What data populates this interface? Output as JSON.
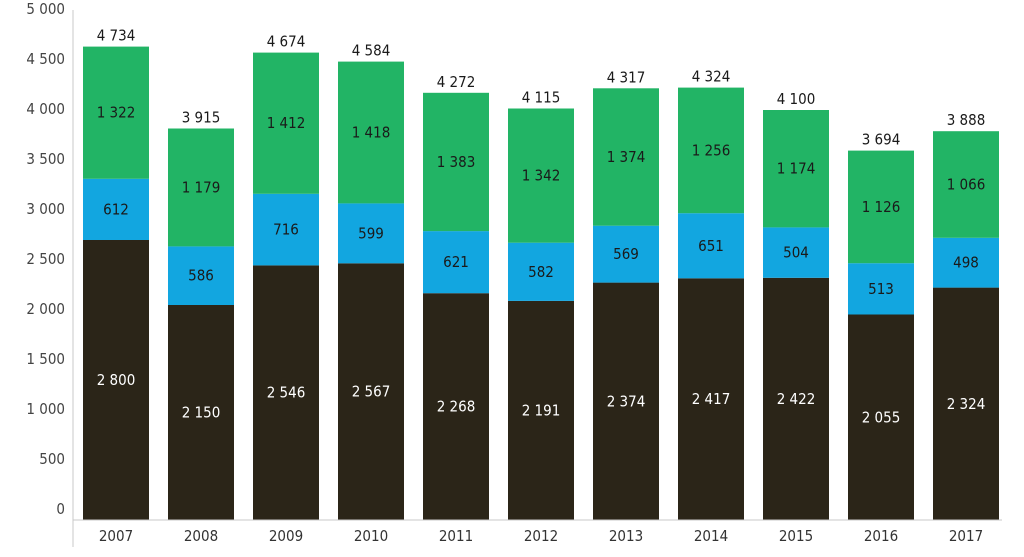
{
  "chart_data": {
    "type": "bar",
    "stacked": true,
    "title": "",
    "xlabel": "",
    "ylabel": "",
    "ylim": [
      0,
      5000
    ],
    "yticks": [
      0,
      500,
      1000,
      1500,
      2000,
      2500,
      3000,
      3500,
      4000,
      4500,
      5000
    ],
    "ytick_labels": [
      "0",
      "500",
      "1 000",
      "1 500",
      "2 000",
      "2 500",
      "3 000",
      "3 500",
      "4 000",
      "4 500",
      "5 000"
    ],
    "grid": false,
    "categories": [
      "2007",
      "2008",
      "2009",
      "2010",
      "2011",
      "2012",
      "2013",
      "2014",
      "2015",
      "2016",
      "2017"
    ],
    "series": [
      {
        "color": "#2b2518",
        "label_color": "#ffffff",
        "values": [
          2800,
          2150,
          2546,
          2567,
          2268,
          2191,
          2374,
          2417,
          2422,
          2055,
          2324
        ],
        "labels": [
          "2 800",
          "2 150",
          "2 546",
          "2 567",
          "2 268",
          "2 191",
          "2 374",
          "2 417",
          "2 422",
          "2 055",
          "2 324"
        ]
      },
      {
        "color": "#12a6e0",
        "label_color": "#1a1a1a",
        "values": [
          612,
          586,
          716,
          599,
          621,
          582,
          569,
          651,
          504,
          513,
          498
        ],
        "labels": [
          "612",
          "586",
          "716",
          "599",
          "621",
          "582",
          "569",
          "651",
          "504",
          "513",
          "498"
        ]
      },
      {
        "color": "#22b465",
        "label_color": "#1a1a1a",
        "values": [
          1322,
          1179,
          1412,
          1418,
          1383,
          1342,
          1374,
          1256,
          1174,
          1126,
          1066
        ],
        "labels": [
          "1 322",
          "1 179",
          "1 412",
          "1 418",
          "1 383",
          "1 342",
          "1 374",
          "1 256",
          "1 174",
          "1 126",
          "1 066"
        ]
      }
    ],
    "totals": [
      4734,
      3915,
      4674,
      4584,
      4272,
      4115,
      4317,
      4324,
      4100,
      3694,
      3888
    ],
    "total_labels": [
      "4 734",
      "3 915",
      "4 674",
      "4 584",
      "4 272",
      "4 115",
      "4 317",
      "4 324",
      "4 100",
      "3 694",
      "3 888"
    ]
  }
}
